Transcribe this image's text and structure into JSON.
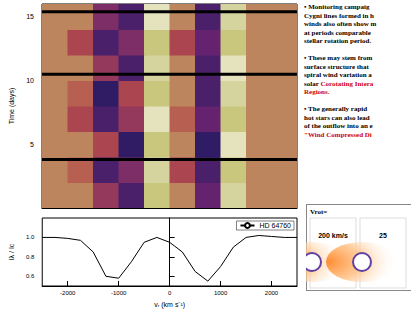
{
  "chart_data": [
    {
      "type": "heatmap",
      "ylabel": "Time (days)",
      "x": [
        -2250,
        -1750,
        -1250,
        -750,
        -250,
        250,
        750,
        1250,
        1750,
        2250
      ],
      "y": [
        1,
        3,
        5,
        7,
        9,
        11,
        13,
        15
      ],
      "cells": [
        [
          1.0,
          1.0,
          0.85,
          0.7,
          1.1,
          1.0,
          0.75,
          1.15,
          1.0,
          1.0
        ],
        [
          1.0,
          0.95,
          0.7,
          0.8,
          1.15,
          0.9,
          0.7,
          1.1,
          1.0,
          1.0
        ],
        [
          1.0,
          1.0,
          0.9,
          0.65,
          1.1,
          1.0,
          0.65,
          1.2,
          1.0,
          1.0
        ],
        [
          1.0,
          0.9,
          0.7,
          0.85,
          1.2,
          0.95,
          0.75,
          1.1,
          1.0,
          1.0
        ],
        [
          1.0,
          0.95,
          0.65,
          0.9,
          1.1,
          1.0,
          0.7,
          1.15,
          1.0,
          1.0
        ],
        [
          1.0,
          1.0,
          0.85,
          0.7,
          1.15,
          1.0,
          0.7,
          1.2,
          1.0,
          1.0
        ],
        [
          1.0,
          0.9,
          0.7,
          0.8,
          1.1,
          0.9,
          0.75,
          1.1,
          1.0,
          1.0
        ],
        [
          1.0,
          1.0,
          0.8,
          0.7,
          1.2,
          1.0,
          0.7,
          1.15,
          1.0,
          1.0
        ]
      ],
      "color_range": [
        0.6,
        1.4
      ],
      "dividers": [
        3.8,
        10.5,
        15.4
      ],
      "xlim": [
        -2500,
        2500
      ],
      "xticks": [
        -2000,
        -1000,
        0,
        1000,
        2000
      ],
      "ylim": [
        0,
        16
      ],
      "yticks": [
        5,
        10,
        15
      ],
      "tick_labels": "y"
    },
    {
      "type": "line",
      "xlabel": "vᵣ (km s⁻¹)",
      "ylabel": "Iλ / Ic",
      "x": [
        -2500,
        -2250,
        -2000,
        -1750,
        -1500,
        -1250,
        -1000,
        -750,
        -500,
        -250,
        0,
        250,
        500,
        750,
        1000,
        1250,
        1500,
        1750,
        2000,
        2250,
        2500
      ],
      "series": [
        {
          "name": "HD 64760",
          "color": "#000000",
          "values": [
            1.0,
            1.0,
            0.99,
            0.97,
            0.85,
            0.6,
            0.58,
            0.75,
            0.95,
            1.0,
            0.95,
            0.85,
            0.65,
            0.55,
            0.7,
            0.9,
            1.0,
            1.02,
            1.01,
            1.0,
            1.0
          ]
        }
      ],
      "xlim": [
        -2500,
        2500
      ],
      "xticks": [
        -2000,
        -1000,
        0,
        1000,
        2000
      ],
      "ylim": [
        0.5,
        1.2
      ],
      "yticks": [
        0.6,
        0.8,
        {
          "value": 1,
          "label": "1.0"
        }
      ],
      "legend": "upper right"
    }
  ],
  "text": {
    "paragraphs": [
      [
        [
          {
            "text": "• Monitoring campaig"
          }
        ],
        [
          {
            "text": "Cygni lines formed in h"
          }
        ],
        [
          {
            "text": "winds also often show m"
          }
        ],
        [
          {
            "text": "at periods comparable"
          }
        ],
        [
          {
            "text": "stellar rotation period."
          }
        ]
      ],
      [
        [
          {
            "text": "• These may stem from"
          }
        ],
        [
          {
            "text": "surface structure that"
          }
        ],
        [
          {
            "text": "spiral wind variation a"
          }
        ],
        [
          {
            "text": "solar "
          },
          {
            "text": "Corotating Intera",
            "color": "#d00000"
          }
        ],
        [
          {
            "text": "Regions.",
            "color": "#d00000"
          }
        ]
      ],
      [
        [
          {
            "text": "• The generally rapid"
          }
        ],
        [
          {
            "text": "hot stars can also lead"
          }
        ],
        [
          {
            "text": "of the outflow into an e"
          }
        ],
        [
          {
            "text": "\"Wind Compressed Di",
            "color": "#d00000"
          }
        ]
      ]
    ]
  },
  "disk_panel": {
    "title": "Vrot=",
    "labels": [
      "200 km/s",
      "25"
    ]
  }
}
